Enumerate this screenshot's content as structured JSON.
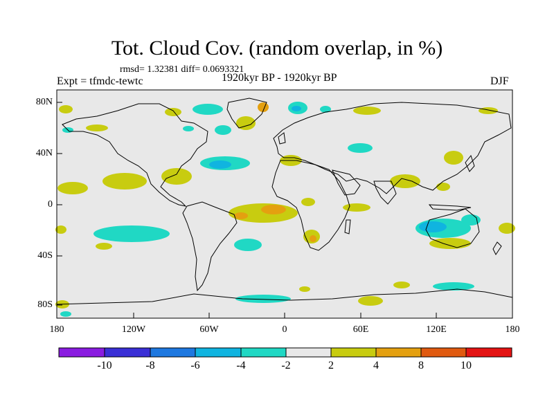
{
  "plot": {
    "title": "Tot. Cloud Cov. (random overlap, in %)",
    "stats": "rmsd= 1.32381 diff= 0.0693321",
    "experiment": "Expt = tfmdc-tewtc",
    "period": "1920kyr BP - 1920kyr BP",
    "season": "DJF"
  },
  "axes": {
    "lat_labels": [
      "80N",
      "40N",
      "0",
      "40S",
      "80S"
    ],
    "lon_labels": [
      "180",
      "120W",
      "60W",
      "0",
      "60E",
      "120E",
      "180"
    ]
  },
  "colorbar": {
    "levels": [
      "-10",
      "-8",
      "-6",
      "-4",
      "-2",
      "2",
      "4",
      "8",
      "10"
    ],
    "colors": [
      "#8a1ce0",
      "#3a2fd6",
      "#1e78e0",
      "#10b4e0",
      "#20d8c4",
      "#e8e8e8",
      "#c8cc10",
      "#e4a010",
      "#e05a10",
      "#e41414"
    ]
  },
  "colors": {
    "map_background": "#e8e8e8",
    "coastline": "#000000"
  }
}
